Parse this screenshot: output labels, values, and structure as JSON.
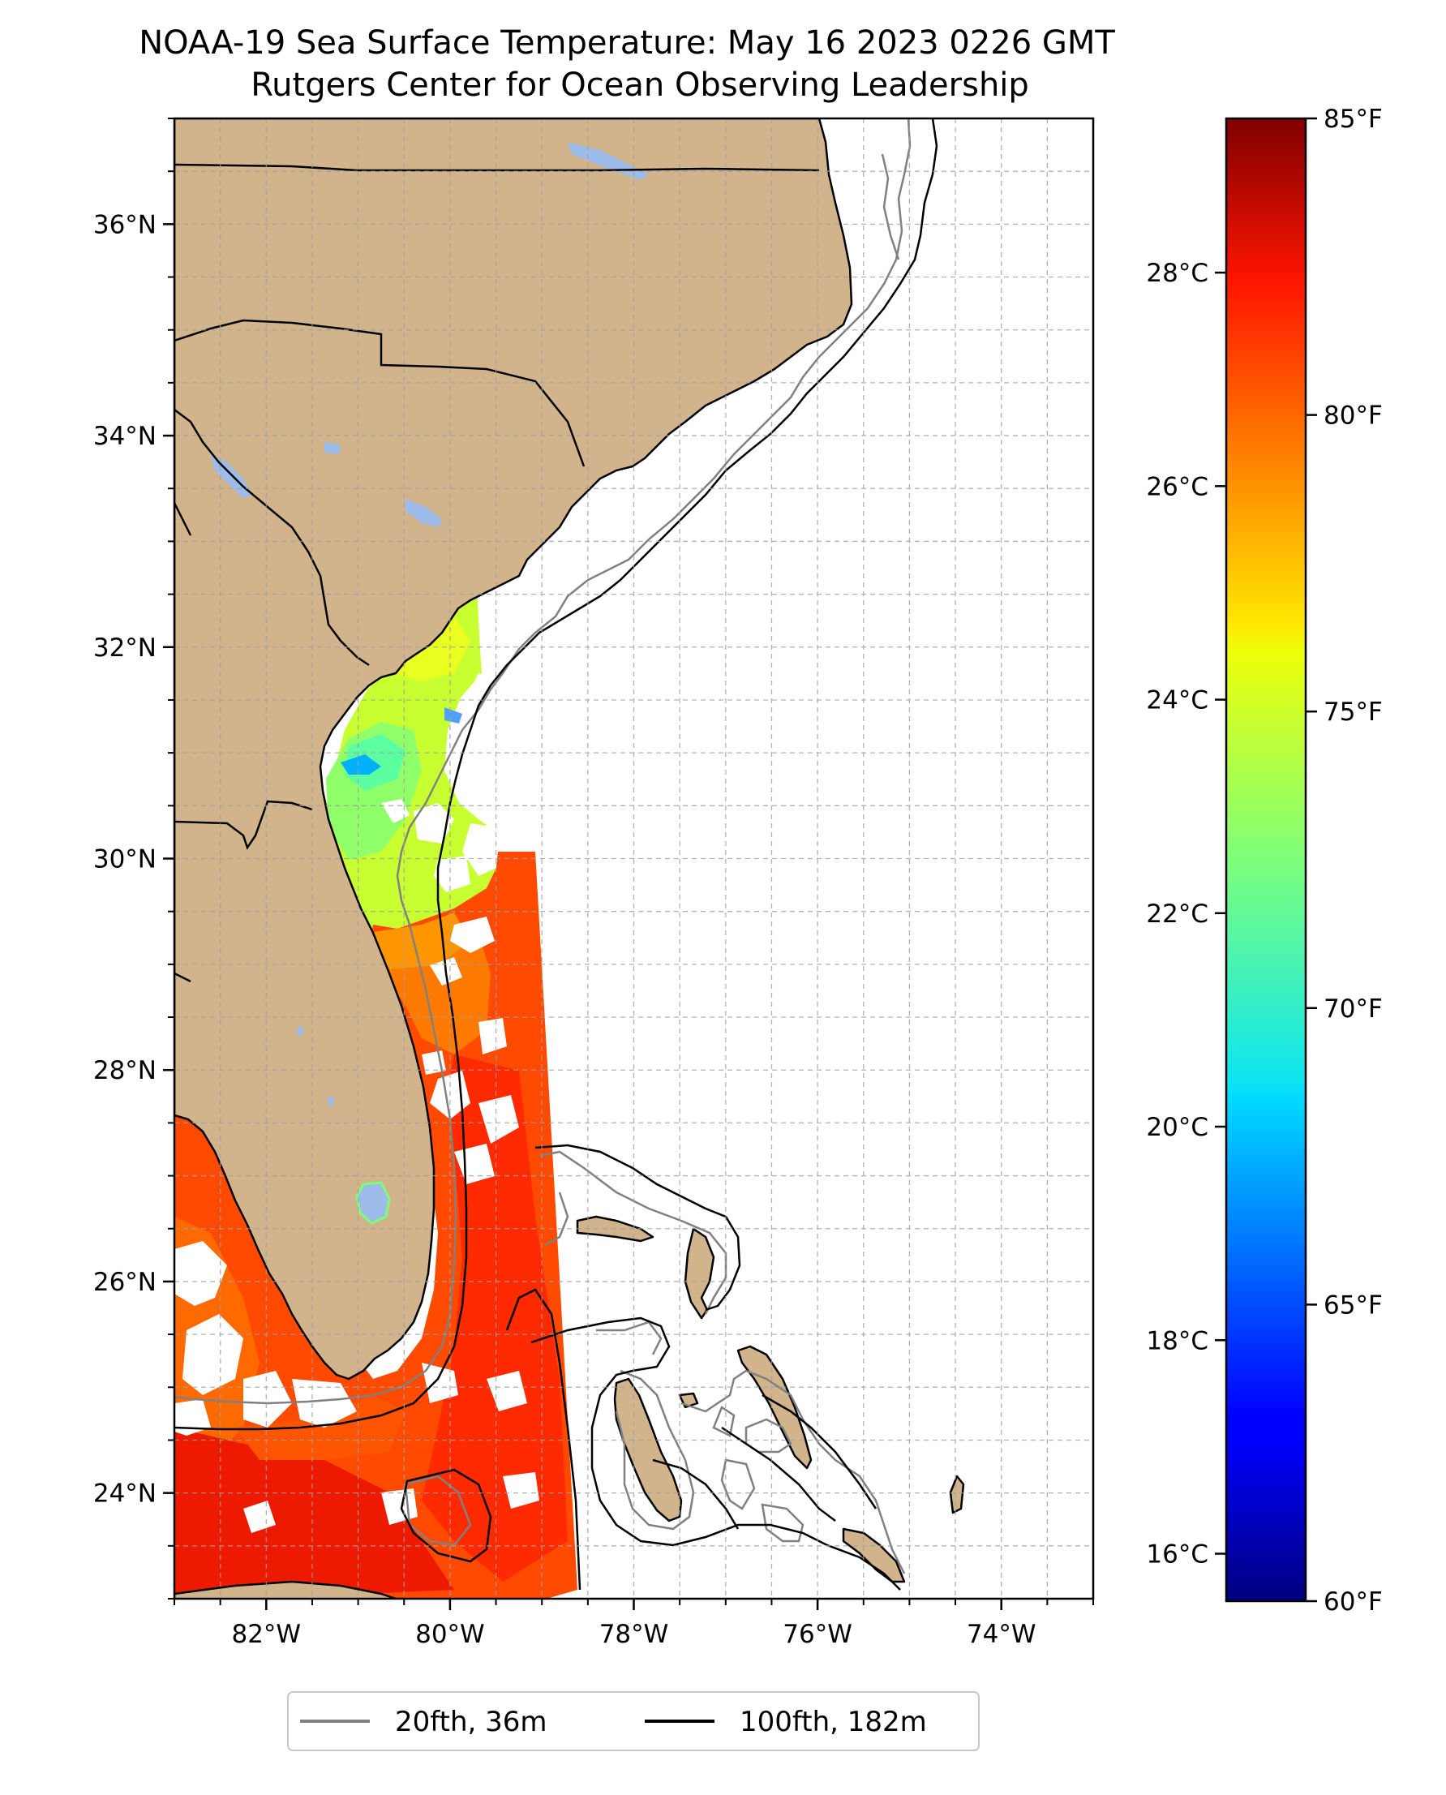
{
  "title": {
    "line1": "NOAA-19 Sea Surface Temperature: May 16 2023 0226 GMT",
    "line2": "Rutgers Center for Ocean Observing Leadership"
  },
  "map": {
    "lon_range": [
      -83.0,
      -73.0
    ],
    "lat_range": [
      23.0,
      37.0
    ],
    "x_ticks": [
      {
        "value": -82,
        "label": "82°W"
      },
      {
        "value": -80,
        "label": "80°W"
      },
      {
        "value": -78,
        "label": "78°W"
      },
      {
        "value": -76,
        "label": "76°W"
      },
      {
        "value": -74,
        "label": "74°W"
      }
    ],
    "y_ticks": [
      {
        "value": 24,
        "label": "24°N"
      },
      {
        "value": 26,
        "label": "26°N"
      },
      {
        "value": 28,
        "label": "28°N"
      },
      {
        "value": 30,
        "label": "30°N"
      },
      {
        "value": 32,
        "label": "32°N"
      },
      {
        "value": 34,
        "label": "34°N"
      },
      {
        "value": 36,
        "label": "36°N"
      }
    ],
    "gridlines": true,
    "gridline_step_deg": 0.5,
    "colors": {
      "land": "#d2b48c",
      "ocean_no_data": "#ffffff",
      "lakes": "#9dbce9",
      "isobath_20fth": "#808080",
      "isobath_100fth": "#000000"
    }
  },
  "colorbar": {
    "colormap": "jet",
    "range_f": [
      60,
      85
    ],
    "celsius_ticks": [
      {
        "value": 16,
        "label": "16°C"
      },
      {
        "value": 18,
        "label": "18°C"
      },
      {
        "value": 20,
        "label": "20°C"
      },
      {
        "value": 22,
        "label": "22°C"
      },
      {
        "value": 24,
        "label": "24°C"
      },
      {
        "value": 26,
        "label": "26°C"
      },
      {
        "value": 28,
        "label": "28°C"
      }
    ],
    "fahrenheit_ticks": [
      {
        "value": 60,
        "label": "60°F"
      },
      {
        "value": 65,
        "label": "65°F"
      },
      {
        "value": 70,
        "label": "70°F"
      },
      {
        "value": 75,
        "label": "75°F"
      },
      {
        "value": 80,
        "label": "80°F"
      },
      {
        "value": 85,
        "label": "85°F"
      }
    ]
  },
  "legend": {
    "items": [
      {
        "label": "20fth, 36m",
        "color": "#808080"
      },
      {
        "label": "100fth, 182m",
        "color": "#000000"
      }
    ]
  }
}
